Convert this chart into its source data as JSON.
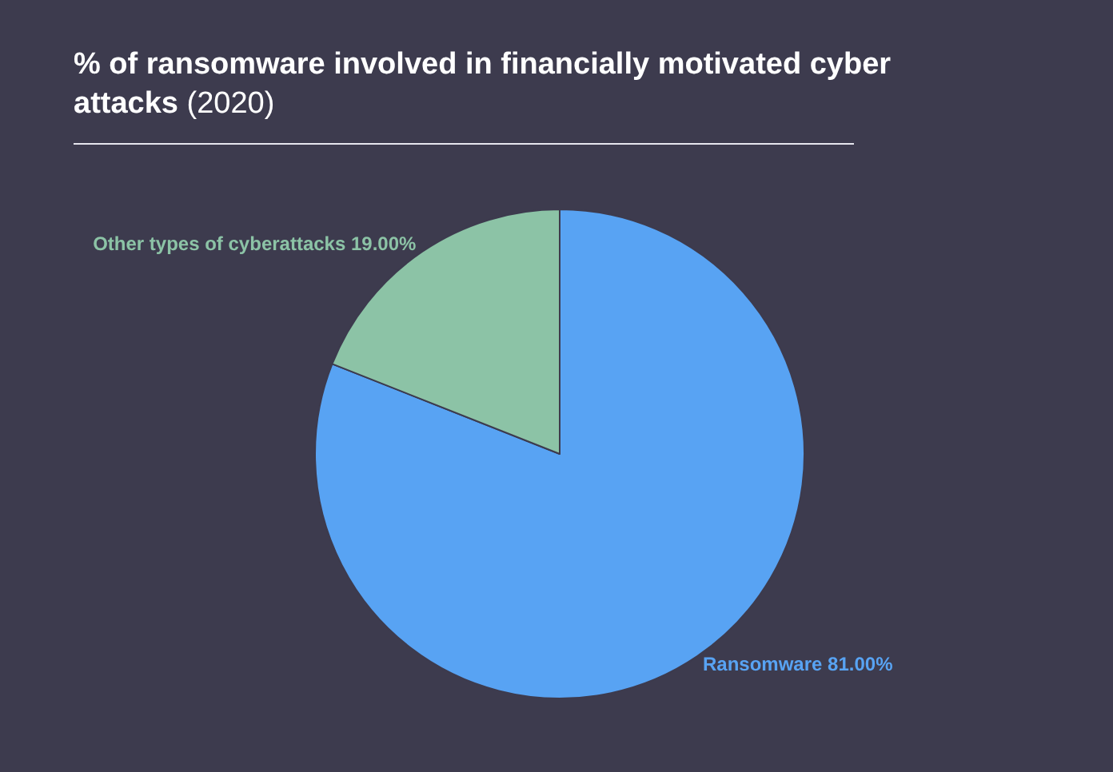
{
  "chart_data": {
    "type": "pie",
    "title": "% of ransomware involved in financially motivated cyber attacks",
    "subtitle": "(2020)",
    "categories": [
      "Ransomware",
      "Other types of cyberattacks"
    ],
    "values": [
      81,
      19
    ],
    "value_labels": [
      "81.00%",
      "19.00%"
    ],
    "colors": [
      "#58a3f3",
      "#8cc3a6"
    ]
  }
}
